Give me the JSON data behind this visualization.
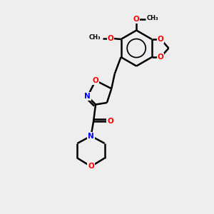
{
  "bg_color": "#eeeeee",
  "bond_color": "#000000",
  "O_color": "#ff0000",
  "N_color": "#0000ff",
  "lw": 1.8,
  "dbo": 0.12,
  "fs": 7.5,
  "xlim": [
    0,
    10
  ],
  "ylim": [
    0,
    10
  ],
  "figsize": [
    3.0,
    3.0
  ],
  "dpi": 100
}
